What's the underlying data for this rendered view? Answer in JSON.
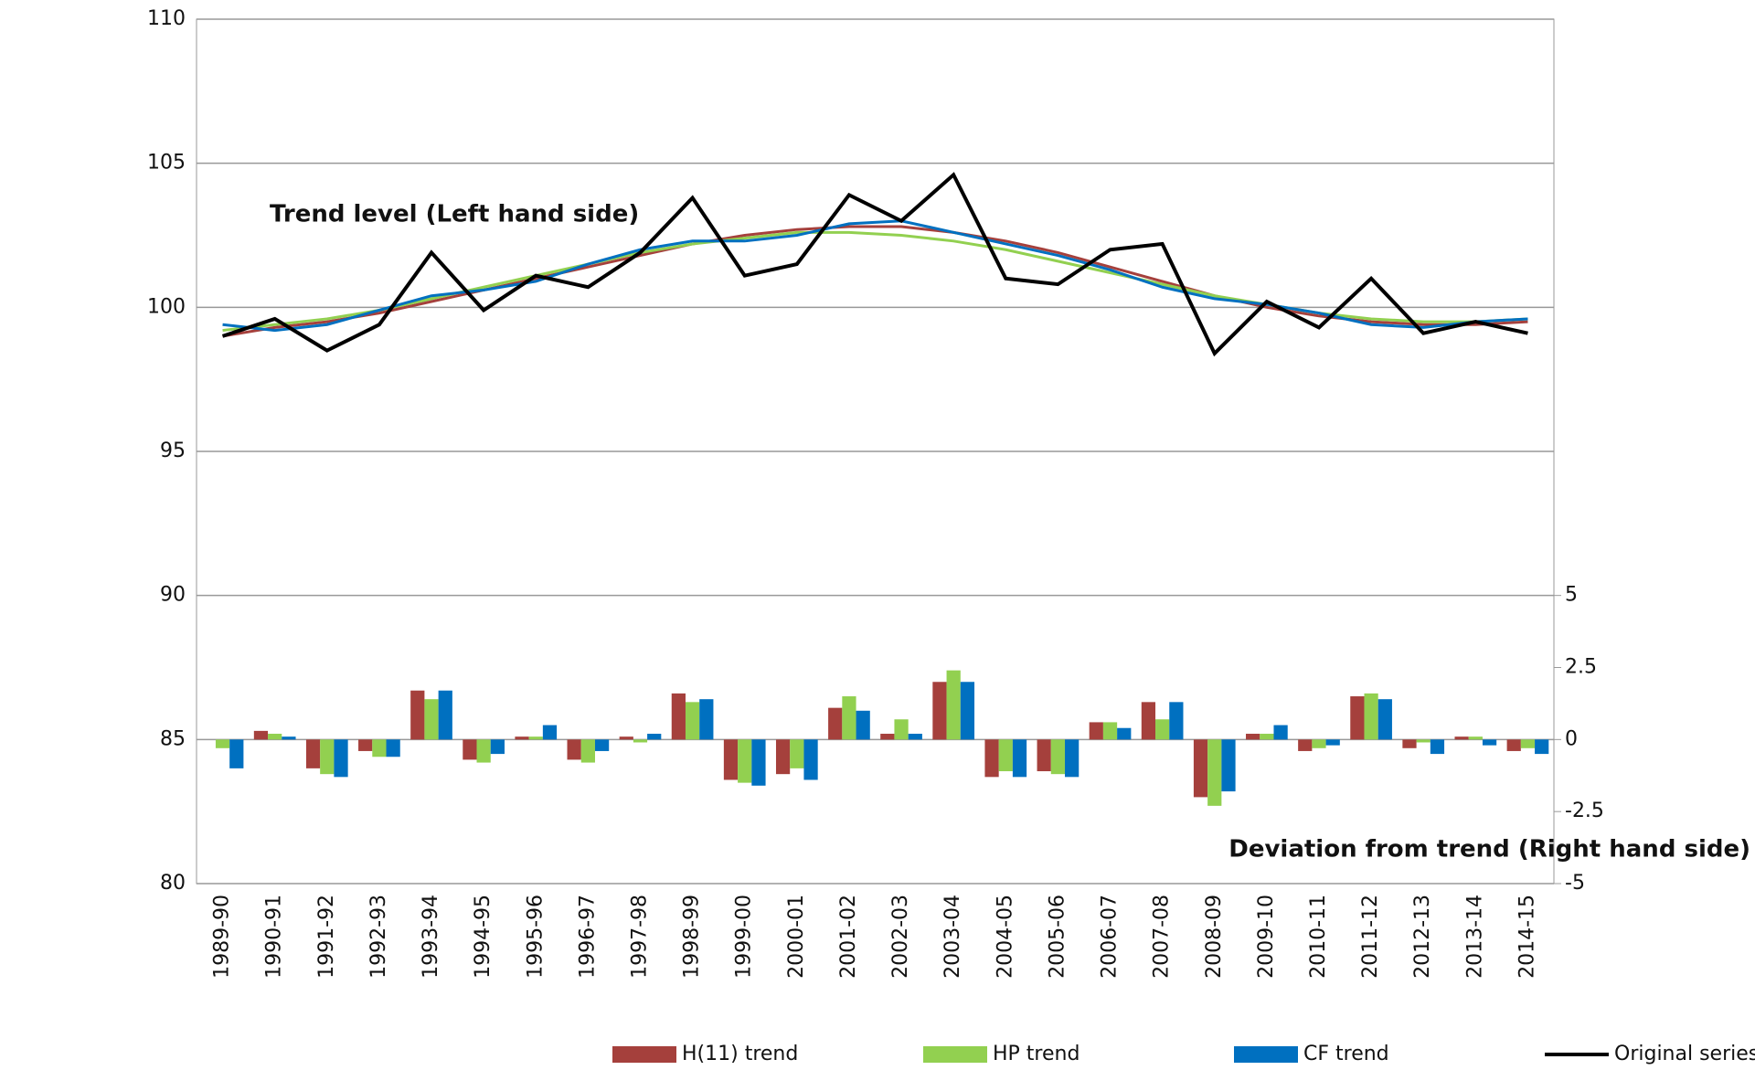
{
  "chart_data": {
    "type": "bar-line",
    "categories": [
      "1989-90",
      "1990-91",
      "1991-92",
      "1992-93",
      "1993-94",
      "1994-95",
      "1995-96",
      "1996-97",
      "1997-98",
      "1998-99",
      "1999-00",
      "2000-01",
      "2001-02",
      "2002-03",
      "2003-04",
      "2004-05",
      "2005-06",
      "2006-07",
      "2007-08",
      "2008-09",
      "2009-10",
      "2010-11",
      "2011-12",
      "2012-13",
      "2013-14",
      "2014-15"
    ],
    "annotations": [
      "Trend level (Left hand side)",
      "Deviation from trend (Right hand side)"
    ],
    "ylim": [
      80,
      110
    ],
    "yticks": [
      80,
      85,
      90,
      95,
      100,
      105,
      110
    ],
    "y2lim": [
      -5,
      25
    ],
    "y2ticks": [
      -5,
      -2.5,
      0,
      2.5,
      5
    ],
    "grid": true,
    "legend": "bottom",
    "series": [
      {
        "name": "H(11) trend",
        "color": "#a5403c",
        "axis": "y2",
        "values": [
          0,
          0.3,
          -1.0,
          -0.4,
          1.7,
          -0.7,
          0.1,
          -0.7,
          0.1,
          1.6,
          -1.4,
          -1.2,
          1.1,
          0.2,
          2.0,
          -1.3,
          -1.1,
          0.6,
          1.3,
          -2.0,
          0.2,
          -0.4,
          1.5,
          -0.3,
          0.1,
          -0.4
        ],
        "levels": [
          99,
          99.3,
          99.5,
          99.8,
          100.2,
          100.6,
          101,
          101.4,
          101.8,
          102.2,
          102.5,
          102.7,
          102.8,
          102.8,
          102.6,
          102.3,
          101.9,
          101.4,
          100.9,
          100.4,
          100,
          99.7,
          99.5,
          99.4,
          99.4,
          99.5
        ]
      },
      {
        "name": "HP trend",
        "color": "#92d050",
        "axis": "y2",
        "values": [
          -0.3,
          0.2,
          -1.2,
          -0.6,
          1.4,
          -0.8,
          0.1,
          -0.8,
          -0.1,
          1.3,
          -1.5,
          -1.0,
          1.5,
          0.7,
          2.4,
          -1.1,
          -1.2,
          0.6,
          0.7,
          -2.3,
          0.2,
          -0.3,
          1.6,
          -0.1,
          0.1,
          -0.3
        ],
        "levels": [
          99.2,
          99.4,
          99.6,
          99.9,
          100.3,
          100.7,
          101.1,
          101.5,
          101.9,
          102.2,
          102.4,
          102.6,
          102.6,
          102.5,
          102.3,
          102,
          101.6,
          101.2,
          100.8,
          100.4,
          100.1,
          99.8,
          99.6,
          99.5,
          99.5,
          99.6
        ]
      },
      {
        "name": "CF trend",
        "color": "#0070c0",
        "axis": "y2",
        "values": [
          -1.0,
          0.1,
          -1.3,
          -0.6,
          1.7,
          -0.5,
          0.5,
          -0.4,
          0.2,
          1.4,
          -1.6,
          -1.4,
          1.0,
          0.2,
          2.0,
          -1.3,
          -1.3,
          0.4,
          1.3,
          -1.8,
          0.5,
          -0.2,
          1.4,
          -0.5,
          -0.2,
          -0.5
        ],
        "levels": [
          99.4,
          99.2,
          99.4,
          99.9,
          100.4,
          100.6,
          100.9,
          101.5,
          102,
          102.3,
          102.3,
          102.5,
          102.9,
          103,
          102.6,
          102.2,
          101.8,
          101.3,
          100.7,
          100.3,
          100.1,
          99.8,
          99.4,
          99.3,
          99.5,
          99.6
        ]
      },
      {
        "name": "Original series",
        "color": "#000000",
        "axis": "y",
        "values": [
          99,
          99.6,
          98.5,
          99.4,
          101.9,
          99.9,
          101.1,
          100.7,
          101.9,
          103.8,
          101.1,
          101.5,
          103.9,
          103,
          104.6,
          101,
          100.8,
          102,
          102.2,
          98.4,
          100.2,
          99.3,
          101,
          99.1,
          99.5,
          99.1
        ]
      }
    ]
  }
}
